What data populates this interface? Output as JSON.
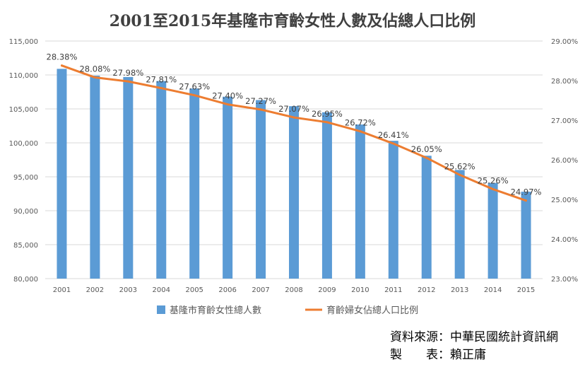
{
  "chart_data": {
    "type": "bar",
    "title": "2001至2015年基隆市育齡女性人數及佔總人口比例",
    "categories": [
      "2001",
      "2002",
      "2003",
      "2004",
      "2005",
      "2006",
      "2007",
      "2008",
      "2009",
      "2010",
      "2011",
      "2012",
      "2013",
      "2014",
      "2015"
    ],
    "y_left": {
      "ylim": [
        80000,
        115000
      ],
      "ticks": [
        "80,000",
        "85,000",
        "90,000",
        "95,000",
        "100,000",
        "105,000",
        "110,000",
        "115,000"
      ]
    },
    "y_right": {
      "ylim": [
        23,
        29
      ],
      "ticks": [
        "23.00%",
        "24.00%",
        "25.00%",
        "26.00%",
        "27.00%",
        "28.00%",
        "29.00%"
      ]
    },
    "series": [
      {
        "name": "基隆市育齡女性總人數",
        "type": "bar",
        "axis": "left",
        "color": "#5B9BD5",
        "values": [
          110900,
          109900,
          109700,
          109100,
          108000,
          106800,
          106300,
          105400,
          104500,
          102700,
          100300,
          98100,
          96000,
          94100,
          92800
        ]
      },
      {
        "name": "育齡婦女佔總人口比例",
        "type": "line",
        "axis": "right",
        "color": "#ED7D31",
        "values": [
          28.38,
          28.08,
          27.98,
          27.81,
          27.63,
          27.4,
          27.27,
          27.07,
          26.95,
          26.72,
          26.41,
          26.05,
          25.62,
          25.26,
          24.97
        ],
        "labels": [
          "28.38%",
          "28.08%",
          "27.98%",
          "27.81%",
          "27.63%",
          "27.40%",
          "27.27%",
          "27.07%",
          "26.95%",
          "26.72%",
          "26.41%",
          "26.05%",
          "25.62%",
          "25.26%",
          "24.97%"
        ]
      }
    ],
    "legend": "bottom"
  },
  "source": {
    "line1": "資料來源：中華民國統計資訊網",
    "line2": "製　　表：賴正庸"
  }
}
